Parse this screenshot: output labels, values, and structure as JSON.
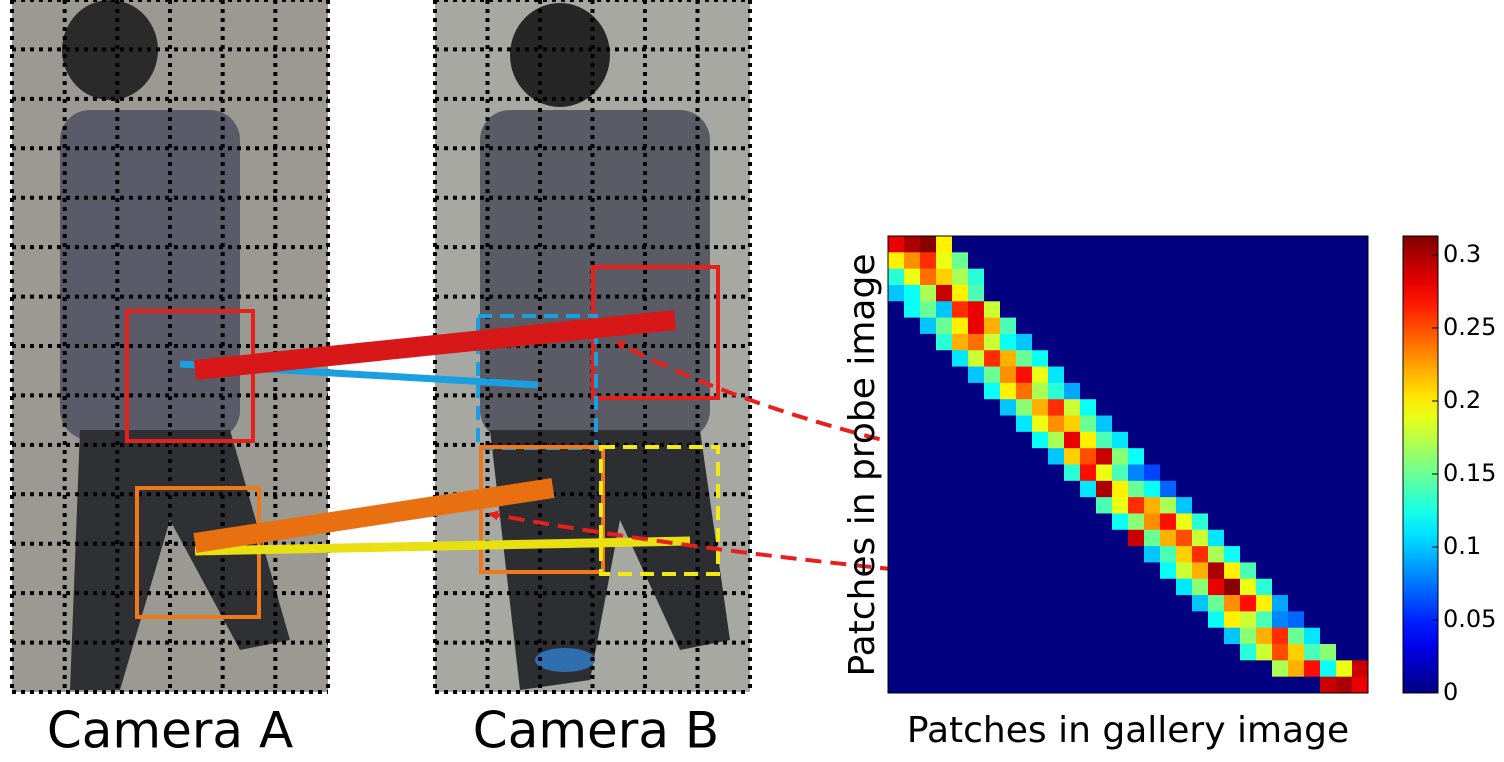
{
  "chart_data": {
    "type": "heatmap",
    "xlabel": "Patches in gallery image",
    "ylabel": "Patches in probe image",
    "colormap": "jet",
    "clim": [
      0,
      0.313
    ],
    "cticks": [
      0,
      0.05,
      0.1,
      0.15,
      0.2,
      0.25,
      0.3
    ],
    "matrix": [
      [
        0.28,
        0.3,
        0.31,
        0.2,
        0,
        0,
        0,
        0,
        0,
        0,
        0,
        0,
        0,
        0,
        0,
        0,
        0,
        0,
        0,
        0,
        0,
        0,
        0,
        0,
        0,
        0,
        0,
        0,
        0,
        0
      ],
      [
        0.2,
        0.23,
        0.26,
        0.19,
        0.15,
        0,
        0,
        0,
        0,
        0,
        0,
        0,
        0,
        0,
        0,
        0,
        0,
        0,
        0,
        0,
        0,
        0,
        0,
        0,
        0,
        0,
        0,
        0,
        0,
        0
      ],
      [
        0.13,
        0.19,
        0.24,
        0.21,
        0.17,
        0.13,
        0,
        0,
        0,
        0,
        0,
        0,
        0,
        0,
        0,
        0,
        0,
        0,
        0,
        0,
        0,
        0,
        0,
        0,
        0,
        0,
        0,
        0,
        0,
        0
      ],
      [
        0.1,
        0.12,
        0.17,
        0.29,
        0.2,
        0.14,
        0,
        0,
        0,
        0,
        0,
        0,
        0,
        0,
        0,
        0,
        0,
        0,
        0,
        0,
        0,
        0,
        0,
        0,
        0,
        0,
        0,
        0,
        0,
        0
      ],
      [
        0,
        0.12,
        0.15,
        0.1,
        0.26,
        0.28,
        0.18,
        0,
        0,
        0,
        0,
        0,
        0,
        0,
        0,
        0,
        0,
        0,
        0,
        0,
        0,
        0,
        0,
        0,
        0,
        0,
        0,
        0,
        0,
        0
      ],
      [
        0,
        0,
        0.1,
        0.15,
        0.2,
        0.28,
        0.22,
        0.14,
        0,
        0,
        0,
        0,
        0,
        0,
        0,
        0,
        0,
        0,
        0,
        0,
        0,
        0,
        0,
        0,
        0,
        0,
        0,
        0,
        0,
        0
      ],
      [
        0,
        0,
        0,
        0.13,
        0.22,
        0.24,
        0.18,
        0.12,
        0.1,
        0,
        0,
        0,
        0,
        0,
        0,
        0,
        0,
        0,
        0,
        0,
        0,
        0,
        0,
        0,
        0,
        0,
        0,
        0,
        0,
        0
      ],
      [
        0,
        0,
        0,
        0,
        0.11,
        0.18,
        0.26,
        0.22,
        0.15,
        0.12,
        0,
        0,
        0,
        0,
        0,
        0,
        0,
        0,
        0,
        0,
        0,
        0,
        0,
        0,
        0,
        0,
        0,
        0,
        0,
        0
      ],
      [
        0,
        0,
        0,
        0,
        0,
        0.1,
        0.15,
        0.23,
        0.27,
        0.19,
        0.11,
        0,
        0,
        0,
        0,
        0,
        0,
        0,
        0,
        0,
        0,
        0,
        0,
        0,
        0,
        0,
        0,
        0,
        0,
        0
      ],
      [
        0,
        0,
        0,
        0,
        0,
        0,
        0.12,
        0.2,
        0.24,
        0.17,
        0.13,
        0.09,
        0,
        0,
        0,
        0,
        0,
        0,
        0,
        0,
        0,
        0,
        0,
        0,
        0,
        0,
        0,
        0,
        0,
        0
      ],
      [
        0,
        0,
        0,
        0,
        0,
        0,
        0,
        0.1,
        0.16,
        0.22,
        0.26,
        0.18,
        0.12,
        0,
        0,
        0,
        0,
        0,
        0,
        0,
        0,
        0,
        0,
        0,
        0,
        0,
        0,
        0,
        0,
        0
      ],
      [
        0,
        0,
        0,
        0,
        0,
        0,
        0,
        0,
        0.11,
        0.19,
        0.23,
        0.21,
        0.15,
        0.1,
        0,
        0,
        0,
        0,
        0,
        0,
        0,
        0,
        0,
        0,
        0,
        0,
        0,
        0,
        0,
        0
      ],
      [
        0,
        0,
        0,
        0,
        0,
        0,
        0,
        0,
        0,
        0.12,
        0.17,
        0.28,
        0.2,
        0.14,
        0.11,
        0,
        0,
        0,
        0,
        0,
        0,
        0,
        0,
        0,
        0,
        0,
        0,
        0,
        0,
        0
      ],
      [
        0,
        0,
        0,
        0,
        0,
        0,
        0,
        0,
        0,
        0,
        0.1,
        0.21,
        0.25,
        0.29,
        0.16,
        0.12,
        0,
        0,
        0,
        0,
        0,
        0,
        0,
        0,
        0,
        0,
        0,
        0,
        0,
        0
      ],
      [
        0,
        0,
        0,
        0,
        0,
        0,
        0,
        0,
        0,
        0,
        0,
        0.13,
        0.27,
        0.19,
        0.14,
        0.08,
        0.06,
        0,
        0,
        0,
        0,
        0,
        0,
        0,
        0,
        0,
        0,
        0,
        0,
        0
      ],
      [
        0,
        0,
        0,
        0,
        0,
        0,
        0,
        0,
        0,
        0,
        0,
        0,
        0.11,
        0.3,
        0.2,
        0.15,
        0.12,
        0.07,
        0,
        0,
        0,
        0,
        0,
        0,
        0,
        0,
        0,
        0,
        0,
        0
      ],
      [
        0,
        0,
        0,
        0,
        0,
        0,
        0,
        0,
        0,
        0,
        0,
        0,
        0,
        0.14,
        0.19,
        0.26,
        0.22,
        0.17,
        0.1,
        0,
        0,
        0,
        0,
        0,
        0,
        0,
        0,
        0,
        0,
        0
      ],
      [
        0,
        0,
        0,
        0,
        0,
        0,
        0,
        0,
        0,
        0,
        0,
        0,
        0,
        0,
        0.12,
        0.16,
        0.23,
        0.27,
        0.19,
        0.13,
        0,
        0,
        0,
        0,
        0,
        0,
        0,
        0,
        0,
        0
      ],
      [
        0,
        0,
        0,
        0,
        0,
        0,
        0,
        0,
        0,
        0,
        0,
        0,
        0,
        0,
        0,
        0.29,
        0.15,
        0.22,
        0.25,
        0.18,
        0.11,
        0,
        0,
        0,
        0,
        0,
        0,
        0,
        0,
        0
      ],
      [
        0,
        0,
        0,
        0,
        0,
        0,
        0,
        0,
        0,
        0,
        0,
        0,
        0,
        0,
        0,
        0,
        0.1,
        0.14,
        0.21,
        0.26,
        0.17,
        0.12,
        0,
        0,
        0,
        0,
        0,
        0,
        0,
        0
      ],
      [
        0,
        0,
        0,
        0,
        0,
        0,
        0,
        0,
        0,
        0,
        0,
        0,
        0,
        0,
        0,
        0,
        0,
        0.12,
        0.18,
        0.22,
        0.3,
        0.2,
        0.14,
        0,
        0,
        0,
        0,
        0,
        0,
        0
      ],
      [
        0,
        0,
        0,
        0,
        0,
        0,
        0,
        0,
        0,
        0,
        0,
        0,
        0,
        0,
        0,
        0,
        0,
        0,
        0.11,
        0.16,
        0.28,
        0.31,
        0.19,
        0.13,
        0,
        0,
        0,
        0,
        0,
        0
      ],
      [
        0,
        0,
        0,
        0,
        0,
        0,
        0,
        0,
        0,
        0,
        0,
        0,
        0,
        0,
        0,
        0,
        0,
        0,
        0,
        0.1,
        0.15,
        0.23,
        0.27,
        0.2,
        0.09,
        0,
        0,
        0,
        0,
        0
      ],
      [
        0,
        0,
        0,
        0,
        0,
        0,
        0,
        0,
        0,
        0,
        0,
        0,
        0,
        0,
        0,
        0,
        0,
        0,
        0,
        0,
        0.12,
        0.2,
        0.18,
        0.14,
        0.08,
        0.07,
        0,
        0,
        0,
        0
      ],
      [
        0,
        0,
        0,
        0,
        0,
        0,
        0,
        0,
        0,
        0,
        0,
        0,
        0,
        0,
        0,
        0,
        0,
        0,
        0,
        0,
        0,
        0.1,
        0.16,
        0.22,
        0.26,
        0.15,
        0.11,
        0,
        0,
        0
      ],
      [
        0,
        0,
        0,
        0,
        0,
        0,
        0,
        0,
        0,
        0,
        0,
        0,
        0,
        0,
        0,
        0,
        0,
        0,
        0,
        0,
        0,
        0,
        0.13,
        0.18,
        0.25,
        0.21,
        0.14,
        0.16,
        0,
        0
      ],
      [
        0,
        0,
        0,
        0,
        0,
        0,
        0,
        0,
        0,
        0,
        0,
        0,
        0,
        0,
        0,
        0,
        0,
        0,
        0,
        0,
        0,
        0,
        0,
        0,
        0.17,
        0.22,
        0.27,
        0.12,
        0.19,
        0.29
      ],
      [
        0,
        0,
        0,
        0,
        0,
        0,
        0,
        0,
        0,
        0,
        0,
        0,
        0,
        0,
        0,
        0,
        0,
        0,
        0,
        0,
        0,
        0,
        0,
        0,
        0,
        0,
        0,
        0.29,
        0.3,
        0.28
      ]
    ]
  },
  "photos": {
    "labels": [
      "Camera A",
      "Camera B"
    ]
  }
}
